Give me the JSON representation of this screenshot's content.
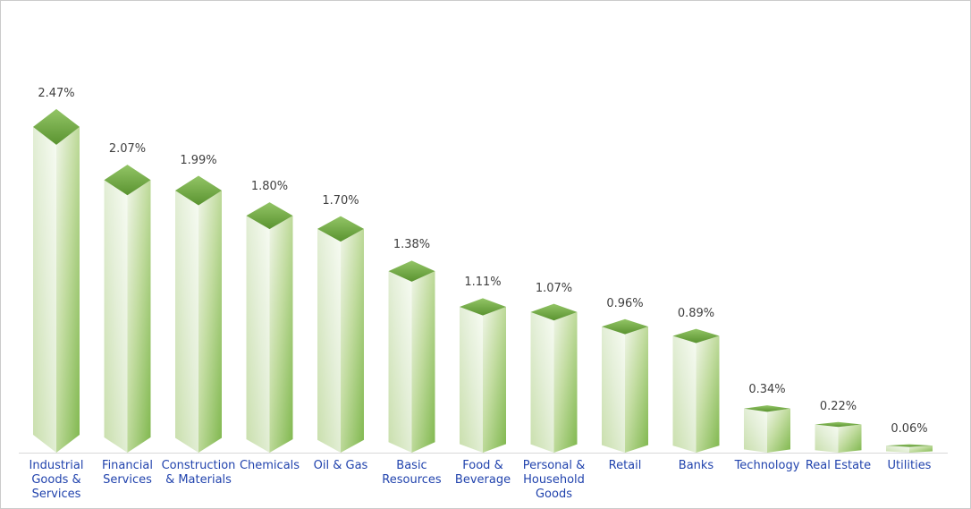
{
  "chart_data": {
    "type": "bar",
    "title": "",
    "subtitle": "",
    "xlabel": "",
    "ylabel": "",
    "unit": "%",
    "ylim": [
      0,
      2.6
    ],
    "grid": false,
    "legend": "none",
    "bar_style": "3d-diamond-cap",
    "categories": [
      "Industrial Goods & Services",
      "Financial Services",
      "Construction & Materials",
      "Chemicals",
      "Oil & Gas",
      "Basic Resources",
      "Food & Beverage",
      "Personal & Household Goods",
      "Retail",
      "Banks",
      "Technology",
      "Real Estate",
      "Utilities"
    ],
    "values": [
      2.47,
      2.07,
      1.99,
      1.8,
      1.7,
      1.38,
      1.11,
      1.07,
      0.96,
      0.89,
      0.34,
      0.22,
      0.06
    ],
    "data_labels": [
      "2.47%",
      "2.07%",
      "1.99%",
      "1.80%",
      "1.70%",
      "1.38%",
      "1.11%",
      "1.07%",
      "0.96%",
      "0.89%",
      "0.34%",
      "0.22%",
      "0.06%"
    ],
    "colors": {
      "cap_top": "#93C566",
      "cap_bottom": "#5A9330",
      "left_face_light": "#F7FBF3",
      "left_face_mid": "#E4EFD8",
      "left_face_dark": "#C9DFAC",
      "right_face_light": "#EFF5E7",
      "right_face_mid": "#C2DCA0",
      "right_face_dark": "#7FB74D",
      "data_label": "#3F3F3F",
      "category_label": "#2143AD",
      "axis_line": "#D9D9D9",
      "chart_border": "#CBCBCB",
      "background": "#FFFFFF"
    }
  }
}
